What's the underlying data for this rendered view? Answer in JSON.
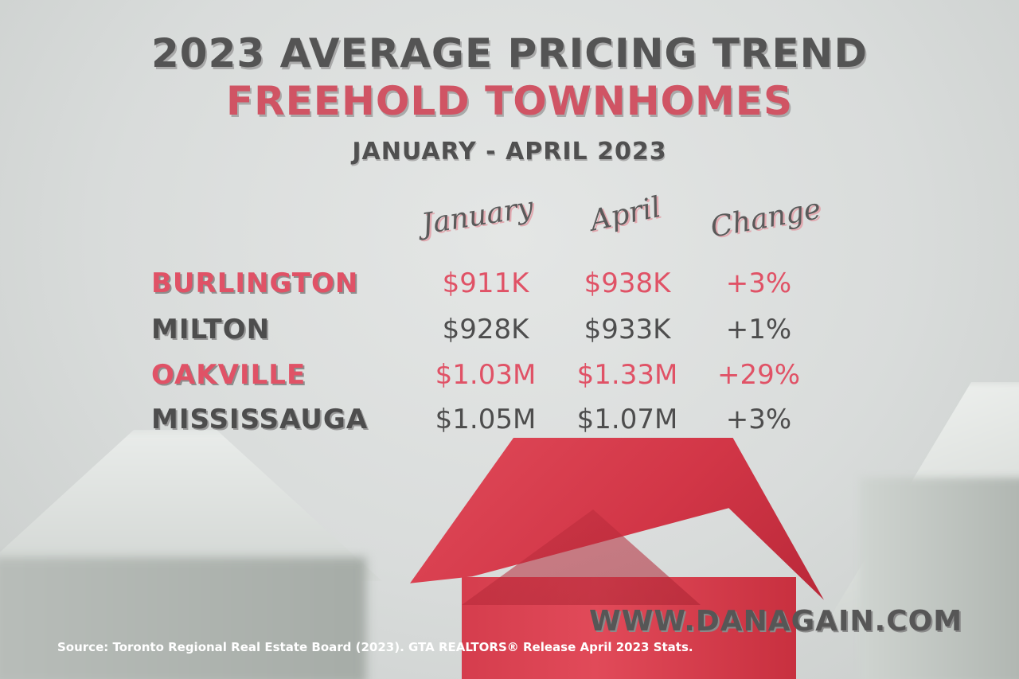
{
  "title": "2023 AVERAGE PRICING TREND",
  "subtitle": "FREEHOLD TOWNHOMES",
  "date_range": "JANUARY - APRIL 2023",
  "columns": {
    "january": "January",
    "april": "April",
    "change": "Change"
  },
  "rows": [
    {
      "city": "BURLINGTON",
      "january": "$911K",
      "april": "$938K",
      "change": "+3%"
    },
    {
      "city": "MILTON",
      "january": "$928K",
      "april": "$933K",
      "change": "+1%"
    },
    {
      "city": "OAKVILLE",
      "january": "$1.03M",
      "april": "$1.33M",
      "change": "+29%"
    },
    {
      "city": "MISSISSAUGA",
      "january": "$1.05M",
      "april": "$1.07M",
      "change": "+3%"
    }
  ],
  "website": "WWW.DANAGAIN.COM",
  "source": "Source: Toronto Regional Real Estate Board (2023). GTA REALTORS® Release April 2023 Stats.",
  "colors": {
    "accent": "#e05266",
    "dark_text": "#4d4d4d",
    "house_red": "#d53d4d"
  }
}
